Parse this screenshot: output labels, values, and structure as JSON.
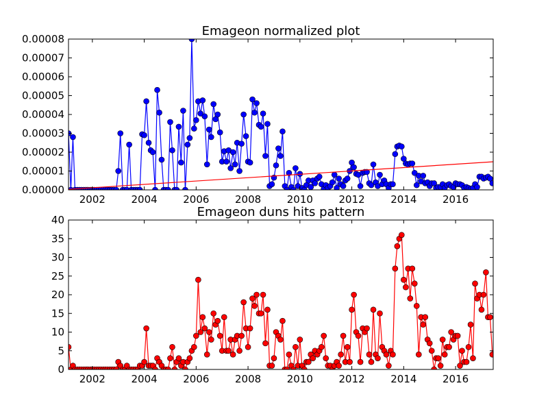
{
  "chart_data": [
    {
      "type": "line",
      "title": "Emageon normalized plot",
      "xlim": [
        2001.08,
        2017.45
      ],
      "xticks": [
        2002,
        2004,
        2006,
        2008,
        2010,
        2012,
        2014,
        2016
      ],
      "ylim": [
        0,
        8e-05
      ],
      "yticks": [
        {
          "value": 0,
          "label": "0.00000"
        },
        {
          "value": 1e-05,
          "label": "0.00001"
        },
        {
          "value": 2e-05,
          "label": "0.00002"
        },
        {
          "value": 3e-05,
          "label": "0.00003"
        },
        {
          "value": 4e-05,
          "label": "0.00004"
        },
        {
          "value": 5e-05,
          "label": "0.00005"
        },
        {
          "value": 6e-05,
          "label": "0.00006"
        },
        {
          "value": 7e-05,
          "label": "0.00007"
        },
        {
          "value": 8e-05,
          "label": "0.00008"
        }
      ],
      "grid": false,
      "series": [
        {
          "color": "#0000ff",
          "markers": true,
          "x": [
            2001.08,
            2001.17,
            2001.25,
            2001.33,
            2001.42,
            2001.5,
            2001.58,
            2001.67,
            2001.75,
            2001.83,
            2001.92,
            2002,
            2002.08,
            2002.17,
            2002.25,
            2002.33,
            2002.42,
            2002.5,
            2002.58,
            2002.67,
            2002.75,
            2002.83,
            2002.92,
            2003,
            2003.08,
            2003.17,
            2003.25,
            2003.33,
            2003.42,
            2003.5,
            2003.58,
            2003.67,
            2003.75,
            2003.83,
            2003.92,
            2004,
            2004.08,
            2004.17,
            2004.25,
            2004.33,
            2004.42,
            2004.5,
            2004.58,
            2004.67,
            2004.75,
            2004.83,
            2004.92,
            2005,
            2005.08,
            2005.17,
            2005.25,
            2005.33,
            2005.42,
            2005.5,
            2005.58,
            2005.67,
            2005.75,
            2005.83,
            2005.92,
            2006,
            2006.08,
            2006.17,
            2006.25,
            2006.33,
            2006.42,
            2006.5,
            2006.58,
            2006.67,
            2006.75,
            2006.83,
            2006.92,
            2007,
            2007.08,
            2007.17,
            2007.25,
            2007.33,
            2007.42,
            2007.5,
            2007.58,
            2007.67,
            2007.75,
            2007.83,
            2007.92,
            2008,
            2008.08,
            2008.17,
            2008.25,
            2008.33,
            2008.42,
            2008.5,
            2008.58,
            2008.67,
            2008.75,
            2008.83,
            2008.92,
            2009,
            2009.08,
            2009.17,
            2009.25,
            2009.33,
            2009.42,
            2009.5,
            2009.58,
            2009.67,
            2009.75,
            2009.83,
            2009.92,
            2010,
            2010.08,
            2010.17,
            2010.25,
            2010.33,
            2010.42,
            2010.5,
            2010.58,
            2010.67,
            2010.75,
            2010.83,
            2010.92,
            2011,
            2011.08,
            2011.17,
            2011.25,
            2011.33,
            2011.42,
            2011.5,
            2011.58,
            2011.67,
            2011.75,
            2011.83,
            2011.92,
            2012,
            2012.08,
            2012.17,
            2012.25,
            2012.33,
            2012.42,
            2012.5,
            2012.58,
            2012.67,
            2012.75,
            2012.83,
            2012.92,
            2013,
            2013.08,
            2013.17,
            2013.25,
            2013.33,
            2013.42,
            2013.5,
            2013.58,
            2013.67,
            2013.75,
            2013.83,
            2013.92,
            2014,
            2014.08,
            2014.17,
            2014.25,
            2014.33,
            2014.42,
            2014.5,
            2014.58,
            2014.67,
            2014.75,
            2014.83,
            2014.92,
            2015,
            2015.08,
            2015.17,
            2015.25,
            2015.33,
            2015.42,
            2015.5,
            2015.58,
            2015.67,
            2015.75,
            2015.83,
            2015.92,
            2016,
            2016.08,
            2016.17,
            2016.25,
            2016.33,
            2016.42,
            2016.5,
            2016.58,
            2016.67,
            2016.75,
            2016.83,
            2016.92,
            2017,
            2017.08,
            2017.17,
            2017.25,
            2017.33,
            2017.42
          ],
          "values": [
            3e-05,
            0,
            2.8e-05,
            0,
            0,
            0,
            0,
            0,
            0,
            0,
            0,
            0,
            0,
            0,
            0,
            0,
            0,
            0,
            0,
            0,
            0,
            0,
            0,
            1e-05,
            3e-05,
            0,
            0,
            0,
            2.4e-05,
            0,
            0,
            0,
            0,
            0,
            2.95e-05,
            2.9e-05,
            4.7e-05,
            2.5e-05,
            2.1e-05,
            2e-05,
            0,
            5.3e-05,
            4.1e-05,
            1.6e-05,
            0,
            0,
            0,
            3.6e-05,
            2.1e-05,
            0,
            0,
            3.35e-05,
            1.45e-05,
            4.2e-05,
            0,
            2.4e-05,
            2.75e-05,
            8e-05,
            3.25e-05,
            3.7e-05,
            4.7e-05,
            4.05e-05,
            4.75e-05,
            3.9e-05,
            1.35e-05,
            3.2e-05,
            2.8e-05,
            4.55e-05,
            3.75e-05,
            4e-05,
            3.05e-05,
            1.5e-05,
            2.05e-05,
            1.5e-05,
            2.1e-05,
            1.15e-05,
            2e-05,
            1.35e-05,
            2.5e-05,
            1e-05,
            2.45e-05,
            4e-05,
            2.85e-05,
            1.5e-05,
            1.45e-05,
            4.8e-05,
            4.1e-05,
            4.6e-05,
            3.45e-05,
            3.35e-05,
            4.05e-05,
            1.8e-05,
            3.5e-05,
            2e-06,
            3e-06,
            6.5e-06,
            1.3e-05,
            2.2e-05,
            1.8e-05,
            3.1e-05,
            2e-06,
            0,
            9e-06,
            1.5e-06,
            0,
            1.15e-05,
            2e-06,
            8.5e-06,
            1e-06,
            0,
            2.5e-06,
            5e-06,
            1.5e-06,
            5e-06,
            3.5e-06,
            6e-06,
            7e-06,
            3e-06,
            5e-07,
            2.5e-06,
            1e-06,
            2e-06,
            4e-06,
            8e-06,
            1e-06,
            6e-06,
            3e-06,
            2e-06,
            5e-06,
            6e-06,
            1e-05,
            1.45e-05,
            1.2e-05,
            8.5e-06,
            8e-06,
            2e-06,
            9e-06,
            9.5e-06,
            9.5e-06,
            3.5e-06,
            2.5e-06,
            1.35e-05,
            4e-06,
            2e-06,
            8e-06,
            3e-06,
            5e-06,
            3e-06,
            1e-06,
            3e-06,
            3e-06,
            1.9e-05,
            2.3e-05,
            2.35e-05,
            2.3e-05,
            1.65e-05,
            1.4e-05,
            1.35e-05,
            1.4e-05,
            1.4e-05,
            9e-06,
            2.5e-06,
            7.5e-06,
            4.5e-06,
            7.5e-06,
            3.5e-06,
            4e-06,
            2e-06,
            3.5e-06,
            3.5e-06,
            1e-06,
            1.5e-06,
            1.5e-06,
            3e-06,
            1e-06,
            2.5e-06,
            3e-06,
            2e-06,
            1.5e-06,
            3.5e-06,
            3e-06,
            3e-06,
            2.5e-06,
            1e-06,
            1.5e-06,
            1e-06,
            5e-07,
            1e-06,
            3e-06,
            1.5e-06,
            7e-06,
            7e-06,
            6e-06,
            6.5e-06,
            7e-06,
            6e-06,
            3.5e-06
          ]
        },
        {
          "color": "#ff0000",
          "markers": false,
          "x": [
            2001.08,
            2017.45
          ],
          "values": [
            3e-07,
            1.49e-05
          ]
        }
      ]
    },
    {
      "type": "line",
      "title": "Emageon duns hits pattern",
      "xlim": [
        2001.08,
        2017.45
      ],
      "xticks": [
        2002,
        2004,
        2006,
        2008,
        2010,
        2012,
        2014,
        2016
      ],
      "ylim": [
        0,
        40
      ],
      "yticks": [
        0,
        5,
        10,
        15,
        20,
        25,
        30,
        35,
        40
      ],
      "grid": false,
      "series": [
        {
          "color": "#ff0000",
          "markers": true,
          "x": [
            2001.08,
            2001.17,
            2001.25,
            2001.33,
            2001.42,
            2001.5,
            2001.58,
            2001.67,
            2001.75,
            2001.83,
            2001.92,
            2002,
            2002.08,
            2002.17,
            2002.25,
            2002.33,
            2002.42,
            2002.5,
            2002.58,
            2002.67,
            2002.75,
            2002.83,
            2002.92,
            2003,
            2003.08,
            2003.17,
            2003.25,
            2003.33,
            2003.42,
            2003.5,
            2003.58,
            2003.67,
            2003.75,
            2003.83,
            2003.92,
            2004,
            2004.08,
            2004.17,
            2004.25,
            2004.33,
            2004.42,
            2004.5,
            2004.58,
            2004.67,
            2004.75,
            2004.83,
            2004.92,
            2005,
            2005.08,
            2005.17,
            2005.25,
            2005.33,
            2005.42,
            2005.5,
            2005.58,
            2005.67,
            2005.75,
            2005.83,
            2005.92,
            2006,
            2006.08,
            2006.17,
            2006.25,
            2006.33,
            2006.42,
            2006.5,
            2006.58,
            2006.67,
            2006.75,
            2006.83,
            2006.92,
            2007,
            2007.08,
            2007.17,
            2007.25,
            2007.33,
            2007.42,
            2007.5,
            2007.58,
            2007.67,
            2007.75,
            2007.83,
            2007.92,
            2008,
            2008.08,
            2008.17,
            2008.25,
            2008.33,
            2008.42,
            2008.5,
            2008.58,
            2008.67,
            2008.75,
            2008.83,
            2008.92,
            2009,
            2009.08,
            2009.17,
            2009.25,
            2009.33,
            2009.42,
            2009.5,
            2009.58,
            2009.67,
            2009.75,
            2009.83,
            2009.92,
            2010,
            2010.08,
            2010.17,
            2010.25,
            2010.33,
            2010.42,
            2010.5,
            2010.58,
            2010.67,
            2010.75,
            2010.83,
            2010.92,
            2011,
            2011.08,
            2011.17,
            2011.25,
            2011.33,
            2011.42,
            2011.5,
            2011.58,
            2011.67,
            2011.75,
            2011.83,
            2011.92,
            2012,
            2012.08,
            2012.17,
            2012.25,
            2012.33,
            2012.42,
            2012.5,
            2012.58,
            2012.67,
            2012.75,
            2012.83,
            2012.92,
            2013,
            2013.08,
            2013.17,
            2013.25,
            2013.33,
            2013.42,
            2013.5,
            2013.58,
            2013.67,
            2013.75,
            2013.83,
            2013.92,
            2014,
            2014.08,
            2014.17,
            2014.25,
            2014.33,
            2014.42,
            2014.5,
            2014.58,
            2014.67,
            2014.75,
            2014.83,
            2014.92,
            2015,
            2015.08,
            2015.17,
            2015.25,
            2015.33,
            2015.42,
            2015.5,
            2015.58,
            2015.67,
            2015.75,
            2015.83,
            2015.92,
            2016,
            2016.08,
            2016.17,
            2016.25,
            2016.33,
            2016.42,
            2016.5,
            2016.58,
            2016.67,
            2016.75,
            2016.83,
            2016.92,
            2017,
            2017.08,
            2017.17,
            2017.25,
            2017.33,
            2017.42
          ],
          "values": [
            6,
            0,
            1,
            0,
            0,
            0,
            0,
            0,
            0,
            0,
            0,
            0,
            0,
            0,
            0,
            0,
            0,
            0,
            0,
            0,
            0,
            0,
            0,
            2,
            1,
            0,
            0,
            1,
            0,
            0,
            0,
            0,
            0,
            1,
            1,
            2,
            11,
            1,
            1,
            1,
            0,
            3,
            2,
            1,
            0,
            0,
            0,
            3,
            6,
            0,
            2,
            3,
            1,
            2,
            0,
            2,
            3,
            5,
            6,
            9,
            24,
            10,
            14,
            11,
            4,
            10,
            8,
            15,
            12,
            13,
            9,
            5,
            14,
            5,
            5,
            8,
            4,
            8,
            9,
            5,
            9,
            18,
            11,
            6,
            11,
            19,
            17,
            20,
            15,
            15,
            20,
            7,
            16,
            1,
            1,
            3,
            10,
            9,
            8,
            13,
            0,
            0,
            4,
            1,
            0,
            6,
            1,
            8,
            1,
            0,
            2,
            2,
            4,
            3,
            5,
            4,
            5,
            6,
            9,
            3,
            1,
            1,
            0,
            1,
            2,
            1,
            4,
            9,
            2,
            6,
            2,
            16,
            20,
            10,
            9,
            2,
            11,
            10,
            11,
            4,
            2,
            16,
            4,
            3,
            15,
            6,
            5,
            4,
            1,
            5,
            4,
            27,
            33,
            35,
            36,
            24,
            22,
            27,
            19,
            27,
            23,
            17,
            4,
            14,
            12,
            14,
            8,
            7,
            5,
            0,
            3,
            3,
            1,
            8,
            4,
            6,
            6,
            10,
            8,
            9,
            9,
            1,
            5,
            2,
            2,
            6,
            12,
            3,
            23,
            19,
            20,
            16,
            20,
            26,
            14,
            14,
            4
          ]
        }
      ]
    }
  ]
}
